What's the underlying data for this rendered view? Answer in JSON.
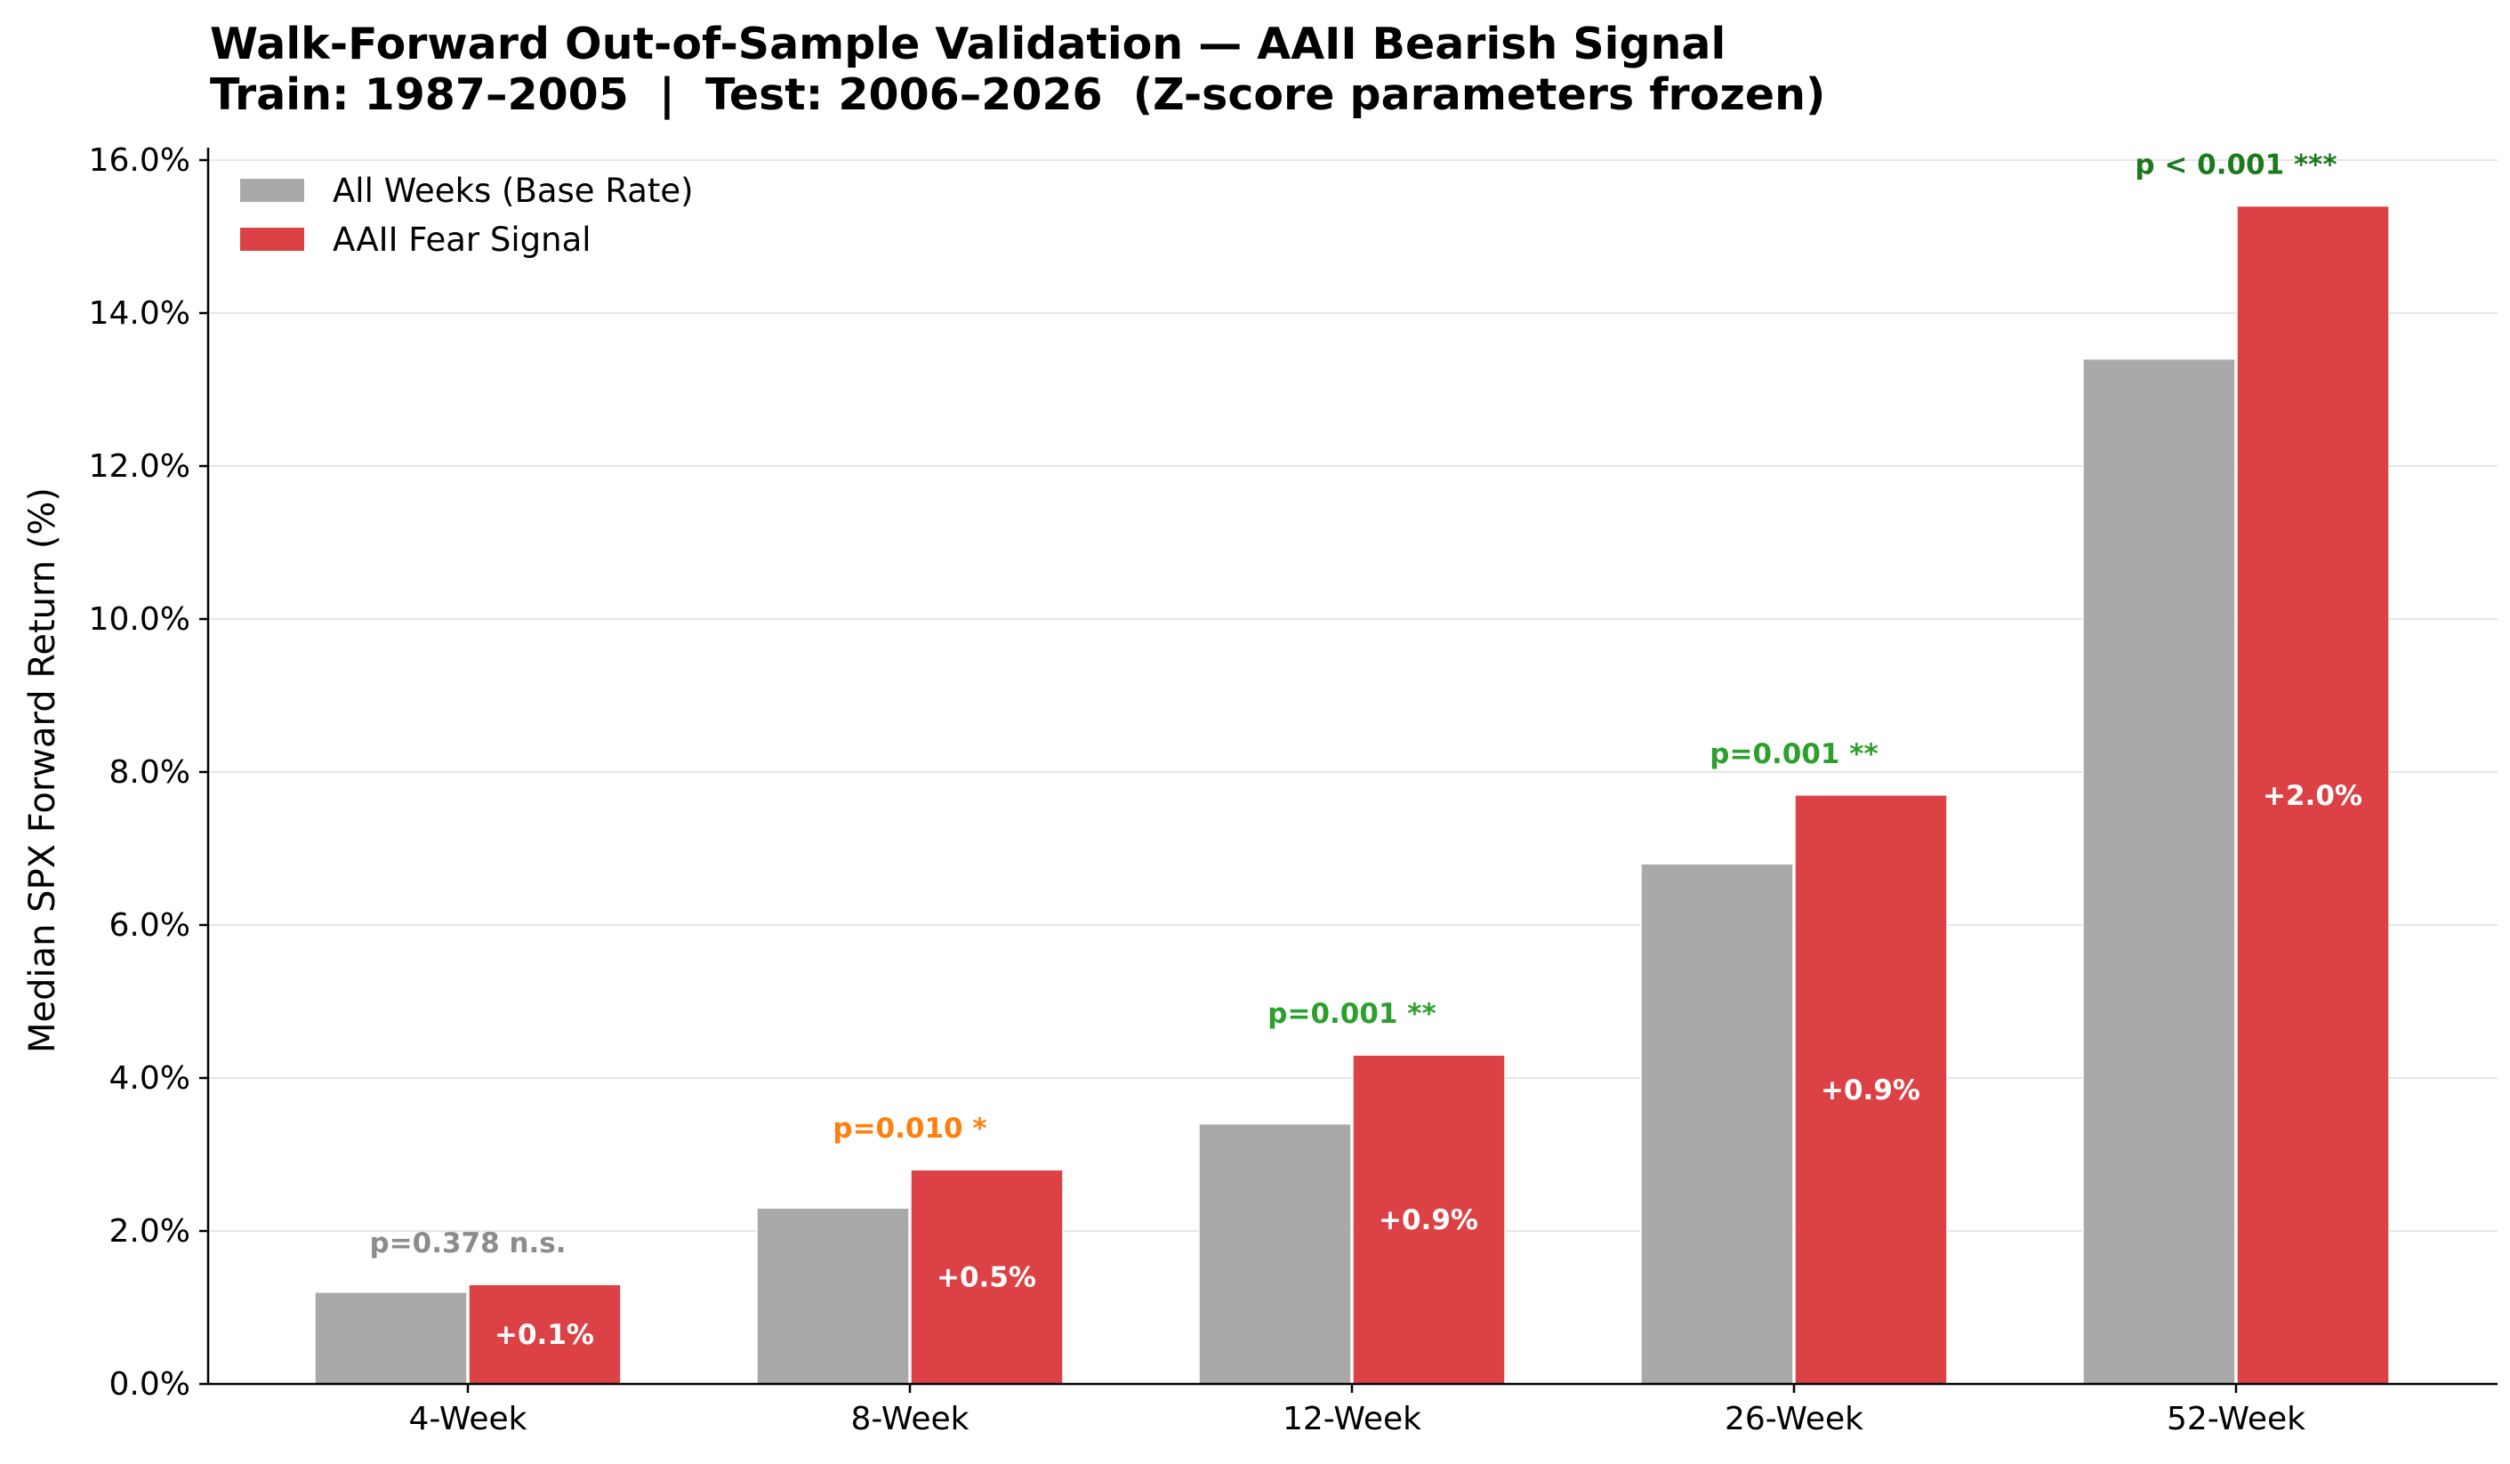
{
  "chart_data": {
    "type": "bar",
    "title": "Walk-Forward Out-of-Sample Validation — AAII Bearish Signal",
    "subtitle": "Train: 1987–2005  |  Test: 2006–2026  (Z-score parameters frozen)",
    "xlabel": "",
    "ylabel": "Median SPX Forward Return (%)",
    "ylim": [
      0,
      16
    ],
    "yticks": [
      0,
      2,
      4,
      6,
      8,
      10,
      12,
      14,
      16
    ],
    "ytick_labels": [
      "0.0%",
      "2.0%",
      "4.0%",
      "6.0%",
      "8.0%",
      "10.0%",
      "12.0%",
      "14.0%",
      "16.0%"
    ],
    "grid": "horizontal",
    "legend_position": "top-left",
    "categories": [
      "4-Week",
      "8-Week",
      "12-Week",
      "26-Week",
      "52-Week"
    ],
    "series": [
      {
        "name": "All Weeks (Base Rate)",
        "color": "#a9a9a9",
        "values": [
          1.2,
          2.3,
          3.4,
          6.8,
          13.4
        ]
      },
      {
        "name": "AAII Fear Signal",
        "color": "#dc4245",
        "values": [
          1.3,
          2.8,
          4.3,
          7.7,
          15.4
        ]
      }
    ],
    "annotations": {
      "p_values": [
        {
          "text": "p=0.378 n.s.",
          "color": "#8c8c8c"
        },
        {
          "text": "p=0.010 *",
          "color": "#ff7f0e"
        },
        {
          "text": "p=0.001 **",
          "color": "#2ca02c"
        },
        {
          "text": "p=0.001 **",
          "color": "#2ca02c"
        },
        {
          "text": "p < 0.001 ***",
          "color": "#1b7a1b"
        }
      ],
      "differences": [
        "+0.1%",
        "+0.5%",
        "+0.9%",
        "+0.9%",
        "+2.0%"
      ]
    }
  }
}
